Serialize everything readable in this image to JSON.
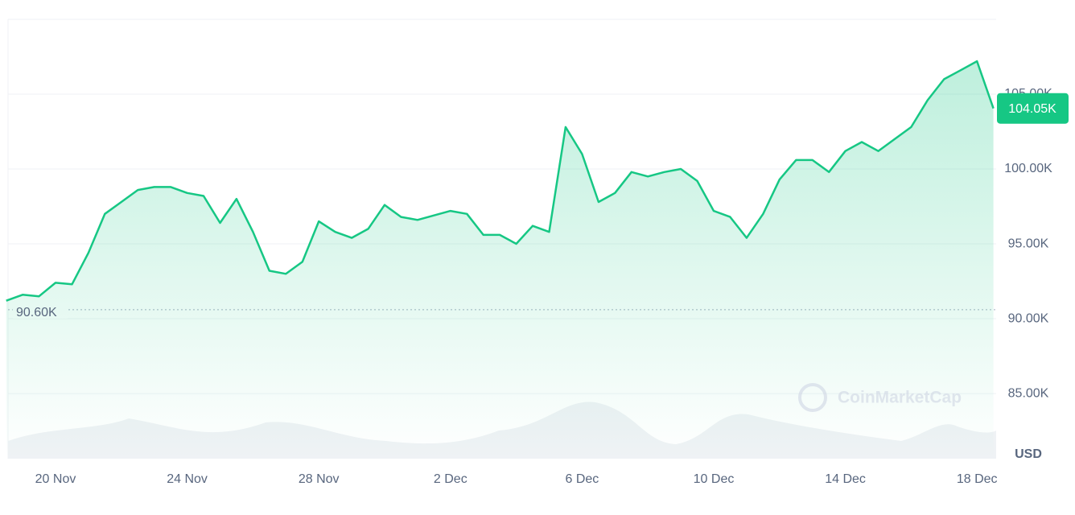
{
  "chart_data": {
    "type": "line",
    "categories": [
      null,
      null,
      null,
      "20 Nov",
      null,
      null,
      null,
      null,
      null,
      null,
      null,
      "24 Nov",
      null,
      null,
      null,
      null,
      null,
      null,
      null,
      "28 Nov",
      null,
      null,
      null,
      null,
      null,
      null,
      null,
      "2 Dec",
      null,
      null,
      null,
      null,
      null,
      null,
      null,
      "6 Dec",
      null,
      null,
      null,
      null,
      null,
      null,
      null,
      "10 Dec",
      null,
      null,
      null,
      null,
      null,
      null,
      null,
      "14 Dec",
      null,
      null,
      null,
      null,
      null,
      null,
      null,
      "18 Dec",
      null
    ],
    "series": [
      {
        "color": "#16c784",
        "values": [
          91200,
          91600,
          91500,
          92400,
          92300,
          94400,
          97000,
          97800,
          98600,
          98800,
          98800,
          98400,
          98200,
          96400,
          98000,
          95800,
          93200,
          93000,
          93800,
          96500,
          95800,
          95400,
          96000,
          97600,
          96800,
          96600,
          96900,
          97200,
          97000,
          95600,
          95600,
          95000,
          96200,
          95800,
          102800,
          101000,
          97800,
          98400,
          99800,
          99500,
          99800,
          100000,
          99200,
          97200,
          96800,
          95400,
          97000,
          99300,
          100600,
          100600,
          99800,
          101200,
          101800,
          101200,
          102000,
          102800,
          104600,
          106000,
          106600,
          107200,
          104050
        ],
        "value_labels": [
          null,
          null,
          null,
          null,
          null,
          null,
          null,
          null,
          null,
          null,
          null,
          null,
          null,
          null,
          null,
          null,
          null,
          null,
          null,
          null,
          null,
          null,
          null,
          null,
          null,
          null,
          null,
          null,
          null,
          null,
          null,
          null,
          null,
          null,
          null,
          null,
          null,
          null,
          null,
          null,
          null,
          null,
          null,
          null,
          null,
          null,
          null,
          null,
          null,
          null,
          null,
          null,
          null,
          null,
          null,
          null,
          null,
          null,
          null,
          null,
          "104.05K"
        ]
      }
    ],
    "ylim": [
      80650,
      110000
    ],
    "yticks": [
      {
        "value": 85000,
        "label": "85.00K"
      },
      {
        "value": 90000,
        "label": "90.00K"
      },
      {
        "value": 95000,
        "label": "95.00K"
      },
      {
        "value": 100000,
        "label": "100.00K"
      },
      {
        "value": 105000,
        "label": "105.00K"
      }
    ],
    "reference_line": {
      "value": 90600,
      "label": "90.60K"
    },
    "y_unit": "USD",
    "watermark": "CoinMarketCap",
    "grid": true
  }
}
